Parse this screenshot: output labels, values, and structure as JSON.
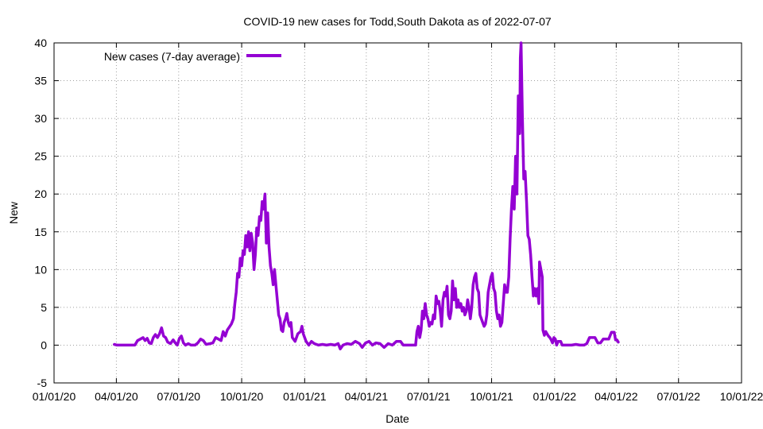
{
  "chart_data": {
    "type": "line",
    "title": "COVID-19 new cases for Todd,South Dakota as of 2022-07-07",
    "xlabel": "Date",
    "ylabel": "New",
    "ylim": [
      -5,
      40
    ],
    "yticks": [
      "-5",
      "0",
      "5",
      "10",
      "15",
      "20",
      "25",
      "30",
      "35",
      "40"
    ],
    "xlim_days": [
      0,
      1004
    ],
    "xticks": [
      {
        "label": "01/01/20",
        "day": 0
      },
      {
        "label": "04/01/20",
        "day": 91
      },
      {
        "label": "07/01/20",
        "day": 182
      },
      {
        "label": "10/01/20",
        "day": 274
      },
      {
        "label": "01/01/21",
        "day": 366
      },
      {
        "label": "04/01/21",
        "day": 456
      },
      {
        "label": "07/01/21",
        "day": 547
      },
      {
        "label": "10/01/21",
        "day": 639
      },
      {
        "label": "01/01/22",
        "day": 731
      },
      {
        "label": "04/01/22",
        "day": 821
      },
      {
        "label": "07/01/22",
        "day": 912
      },
      {
        "label": "10/01/22",
        "day": 1004
      }
    ],
    "legend": {
      "position": "top-left"
    },
    "series": [
      {
        "name": "New cases (7-day average)",
        "color": "#9400d3",
        "points": [
          [
            88,
            0.1
          ],
          [
            92,
            0
          ],
          [
            100,
            0
          ],
          [
            110,
            0
          ],
          [
            118,
            0
          ],
          [
            122,
            0.6
          ],
          [
            126,
            0.8
          ],
          [
            130,
            1.0
          ],
          [
            133,
            0.6
          ],
          [
            136,
            0.9
          ],
          [
            139,
            0.3
          ],
          [
            142,
            0.2
          ],
          [
            145,
            1.0
          ],
          [
            148,
            1.4
          ],
          [
            151,
            1.0
          ],
          [
            154,
            1.5
          ],
          [
            157,
            2.3
          ],
          [
            160,
            1.2
          ],
          [
            163,
            1.0
          ],
          [
            166,
            0.4
          ],
          [
            170,
            0.2
          ],
          [
            174,
            0.7
          ],
          [
            177,
            0.3
          ],
          [
            180,
            0
          ],
          [
            183,
            0.9
          ],
          [
            186,
            1.2
          ],
          [
            189,
            0.3
          ],
          [
            192,
            0
          ],
          [
            196,
            0.2
          ],
          [
            200,
            0
          ],
          [
            206,
            0
          ],
          [
            210,
            0.3
          ],
          [
            214,
            0.8
          ],
          [
            218,
            0.6
          ],
          [
            222,
            0.1
          ],
          [
            228,
            0.2
          ],
          [
            232,
            0.3
          ],
          [
            236,
            1.0
          ],
          [
            240,
            0.8
          ],
          [
            244,
            0.6
          ],
          [
            247,
            1.8
          ],
          [
            250,
            1.2
          ],
          [
            253,
            2.0
          ],
          [
            256,
            2.4
          ],
          [
            259,
            2.8
          ],
          [
            262,
            3.5
          ],
          [
            264,
            5.5
          ],
          [
            266,
            7.0
          ],
          [
            268,
            9.5
          ],
          [
            270,
            9.0
          ],
          [
            272,
            11.5
          ],
          [
            274,
            10.5
          ],
          [
            276,
            12.5
          ],
          [
            278,
            12.0
          ],
          [
            280,
            14.5
          ],
          [
            282,
            13.0
          ],
          [
            284,
            15.0
          ],
          [
            286,
            12.5
          ],
          [
            288,
            14.8
          ],
          [
            290,
            13.5
          ],
          [
            292,
            10.0
          ],
          [
            294,
            12.0
          ],
          [
            296,
            15.5
          ],
          [
            298,
            14.5
          ],
          [
            300,
            17.0
          ],
          [
            302,
            16.5
          ],
          [
            304,
            19.0
          ],
          [
            306,
            18.0
          ],
          [
            308,
            20.0
          ],
          [
            310,
            13.5
          ],
          [
            312,
            17.5
          ],
          [
            314,
            13.0
          ],
          [
            316,
            10.5
          ],
          [
            318,
            9.5
          ],
          [
            320,
            8.0
          ],
          [
            322,
            10.0
          ],
          [
            324,
            8.0
          ],
          [
            326,
            6.0
          ],
          [
            328,
            4.0
          ],
          [
            330,
            3.5
          ],
          [
            332,
            2.0
          ],
          [
            334,
            1.8
          ],
          [
            336,
            3.0
          ],
          [
            338,
            3.5
          ],
          [
            340,
            4.2
          ],
          [
            342,
            3.0
          ],
          [
            344,
            2.5
          ],
          [
            346,
            3.0
          ],
          [
            348,
            1.0
          ],
          [
            352,
            0.5
          ],
          [
            356,
            1.5
          ],
          [
            360,
            1.8
          ],
          [
            362,
            2.5
          ],
          [
            364,
            1.5
          ],
          [
            368,
            0.5
          ],
          [
            372,
            0
          ],
          [
            376,
            0.5
          ],
          [
            380,
            0.2
          ],
          [
            386,
            0
          ],
          [
            392,
            0.1
          ],
          [
            398,
            0
          ],
          [
            404,
            0.1
          ],
          [
            410,
            0
          ],
          [
            415,
            0.2
          ],
          [
            418,
            -0.5
          ],
          [
            422,
            0
          ],
          [
            428,
            0.2
          ],
          [
            434,
            0.1
          ],
          [
            440,
            0.5
          ],
          [
            446,
            0.2
          ],
          [
            450,
            -0.3
          ],
          [
            455,
            0.3
          ],
          [
            460,
            0.5
          ],
          [
            465,
            0
          ],
          [
            470,
            0.3
          ],
          [
            476,
            0.2
          ],
          [
            482,
            -0.3
          ],
          [
            488,
            0.2
          ],
          [
            494,
            0
          ],
          [
            500,
            0.5
          ],
          [
            506,
            0.5
          ],
          [
            510,
            0
          ],
          [
            516,
            0
          ],
          [
            524,
            0
          ],
          [
            528,
            0
          ],
          [
            530,
            1.8
          ],
          [
            532,
            2.5
          ],
          [
            534,
            1.0
          ],
          [
            536,
            2.0
          ],
          [
            538,
            4.5
          ],
          [
            540,
            3.5
          ],
          [
            542,
            5.5
          ],
          [
            544,
            4.0
          ],
          [
            546,
            3.5
          ],
          [
            548,
            2.5
          ],
          [
            550,
            3.0
          ],
          [
            552,
            2.8
          ],
          [
            554,
            4.0
          ],
          [
            556,
            3.5
          ],
          [
            558,
            6.5
          ],
          [
            560,
            5.5
          ],
          [
            562,
            5.8
          ],
          [
            564,
            4.5
          ],
          [
            566,
            2.5
          ],
          [
            568,
            6.0
          ],
          [
            570,
            7.0
          ],
          [
            572,
            6.5
          ],
          [
            574,
            7.8
          ],
          [
            576,
            4.0
          ],
          [
            578,
            3.5
          ],
          [
            580,
            4.5
          ],
          [
            582,
            8.5
          ],
          [
            584,
            6.0
          ],
          [
            586,
            7.5
          ],
          [
            588,
            5.0
          ],
          [
            590,
            6.0
          ],
          [
            592,
            5.0
          ],
          [
            594,
            5.5
          ],
          [
            596,
            4.5
          ],
          [
            598,
            5.0
          ],
          [
            600,
            4.0
          ],
          [
            602,
            4.5
          ],
          [
            604,
            6.0
          ],
          [
            606,
            5.0
          ],
          [
            608,
            3.5
          ],
          [
            610,
            5.0
          ],
          [
            612,
            8.0
          ],
          [
            614,
            9.0
          ],
          [
            616,
            9.5
          ],
          [
            618,
            7.5
          ],
          [
            620,
            7.0
          ],
          [
            622,
            4.0
          ],
          [
            624,
            3.5
          ],
          [
            626,
            3.0
          ],
          [
            628,
            2.5
          ],
          [
            630,
            2.8
          ],
          [
            632,
            4.0
          ],
          [
            634,
            7.0
          ],
          [
            636,
            8.0
          ],
          [
            638,
            9.0
          ],
          [
            640,
            9.5
          ],
          [
            642,
            7.5
          ],
          [
            644,
            7.0
          ],
          [
            646,
            4.5
          ],
          [
            648,
            3.5
          ],
          [
            650,
            4.0
          ],
          [
            652,
            2.5
          ],
          [
            654,
            3.0
          ],
          [
            656,
            5.5
          ],
          [
            658,
            8.0
          ],
          [
            660,
            7.0
          ],
          [
            662,
            7.0
          ],
          [
            664,
            9.0
          ],
          [
            666,
            14.0
          ],
          [
            668,
            18.0
          ],
          [
            670,
            21.0
          ],
          [
            672,
            18.0
          ],
          [
            674,
            25.0
          ],
          [
            676,
            20.0
          ],
          [
            678,
            33.0
          ],
          [
            680,
            28.0
          ],
          [
            681,
            38.0
          ],
          [
            682,
            40.0
          ],
          [
            684,
            30.0
          ],
          [
            686,
            22.0
          ],
          [
            688,
            23.0
          ],
          [
            690,
            19.0
          ],
          [
            692,
            14.5
          ],
          [
            694,
            14.0
          ],
          [
            696,
            12.0
          ],
          [
            698,
            9.0
          ],
          [
            700,
            6.5
          ],
          [
            702,
            7.5
          ],
          [
            704,
            6.5
          ],
          [
            706,
            7.5
          ],
          [
            708,
            5.5
          ],
          [
            709,
            11.0
          ],
          [
            711,
            10.0
          ],
          [
            713,
            9.0
          ],
          [
            714,
            2.0
          ],
          [
            716,
            1.3
          ],
          [
            718,
            1.8
          ],
          [
            720,
            1.5
          ],
          [
            722,
            1.2
          ],
          [
            724,
            1.0
          ],
          [
            726,
            0.7
          ],
          [
            728,
            0.3
          ],
          [
            730,
            1.0
          ],
          [
            732,
            0.8
          ],
          [
            734,
            0
          ],
          [
            736,
            0.5
          ],
          [
            740,
            0.5
          ],
          [
            742,
            0
          ],
          [
            748,
            0
          ],
          [
            756,
            0
          ],
          [
            762,
            0.1
          ],
          [
            768,
            0
          ],
          [
            774,
            0
          ],
          [
            778,
            0.2
          ],
          [
            782,
            1.0
          ],
          [
            786,
            1.0
          ],
          [
            790,
            1.0
          ],
          [
            794,
            0.3
          ],
          [
            798,
            0.3
          ],
          [
            802,
            0.8
          ],
          [
            806,
            0.8
          ],
          [
            810,
            0.8
          ],
          [
            814,
            1.7
          ],
          [
            818,
            1.7
          ],
          [
            820,
            0.7
          ],
          [
            822,
            0.7
          ],
          [
            824,
            0.4
          ]
        ]
      }
    ]
  }
}
